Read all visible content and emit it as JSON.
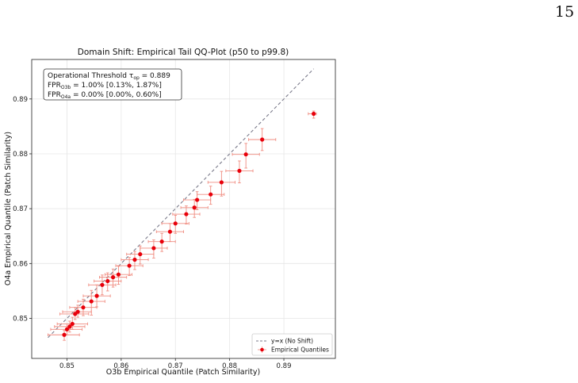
{
  "page": {
    "number": "15"
  },
  "colors": {
    "points": "#e8000b",
    "errorbars": "#f08c80",
    "diagonal": "#7a7a8a",
    "grid": "#e6e6e6"
  },
  "chart_data": {
    "type": "scatter",
    "title": "Domain Shift: Empirical Tail QQ-Plot (p50 to p99.8)",
    "xlabel": "O3b Empirical Quantile (Patch Similarity)",
    "ylabel": "O4a Empirical Quantile (Patch Similarity)",
    "xlim": [
      0.8435,
      0.8995
    ],
    "ylim": [
      0.8427,
      0.8972
    ],
    "xticks": [
      "0.85",
      "0.86",
      "0.87",
      "0.88",
      "0.89"
    ],
    "xtick_values": [
      0.85,
      0.86,
      0.87,
      0.88,
      0.89
    ],
    "yticks": [
      "0.85",
      "0.86",
      "0.87",
      "0.88",
      "0.89"
    ],
    "ytick_values": [
      0.85,
      0.86,
      0.87,
      0.88,
      0.89
    ],
    "grid": true,
    "annotation": {
      "line1_prefix": "Operational Threshold τ",
      "line1_sub": "op",
      "line1_value": " = 0.889",
      "line2_prefix": "FPR",
      "line2_sub": "O3b",
      "line2_value": " = 1.00% [0.13%, 1.87%]",
      "line3_prefix": "FPR",
      "line3_sub": "O4a",
      "line3_value": " = 0.00% [0.00%, 0.60%]",
      "placement": "top-left"
    },
    "legend": {
      "placement": "lower-right",
      "entries": [
        "y=x (No Shift)",
        "Empirical Quantiles"
      ]
    },
    "diagonal": {
      "from": [
        0.8465,
        0.8465
      ],
      "to": [
        0.8955,
        0.8955
      ]
    },
    "series": [
      {
        "name": "Empirical Quantiles",
        "points": [
          {
            "x": 0.8495,
            "y": 0.847,
            "xerr": [
              0.003,
              0.0028
            ],
            "yerr": [
              0.001,
              0.0008
            ]
          },
          {
            "x": 0.85,
            "y": 0.848,
            "xerr": [
              0.003,
              0.0028
            ],
            "yerr": [
              0.001,
              0.001
            ]
          },
          {
            "x": 0.8505,
            "y": 0.8485,
            "xerr": [
              0.0028,
              0.0028
            ],
            "yerr": [
              0.001,
              0.001
            ]
          },
          {
            "x": 0.851,
            "y": 0.849,
            "xerr": [
              0.0028,
              0.0028
            ],
            "yerr": [
              0.001,
              0.0012
            ]
          },
          {
            "x": 0.8515,
            "y": 0.8508,
            "xerr": [
              0.0028,
              0.0025
            ],
            "yerr": [
              0.001,
              0.0012
            ]
          },
          {
            "x": 0.852,
            "y": 0.8512,
            "xerr": [
              0.0028,
              0.0025
            ],
            "yerr": [
              0.001,
              0.0012
            ]
          },
          {
            "x": 0.853,
            "y": 0.852,
            "xerr": [
              0.0025,
              0.0025
            ],
            "yerr": [
              0.0015,
              0.0015
            ]
          },
          {
            "x": 0.8545,
            "y": 0.8531,
            "xerr": [
              0.0025,
              0.0025
            ],
            "yerr": [
              0.0025,
              0.002
            ]
          },
          {
            "x": 0.8555,
            "y": 0.8541,
            "xerr": [
              0.0025,
              0.0025
            ],
            "yerr": [
              0.002,
              0.002
            ]
          },
          {
            "x": 0.8565,
            "y": 0.8561,
            "xerr": [
              0.0025,
              0.0025
            ],
            "yerr": [
              0.0018,
              0.0018
            ]
          },
          {
            "x": 0.8575,
            "y": 0.8568,
            "xerr": [
              0.0025,
              0.0025
            ],
            "yerr": [
              0.0018,
              0.0015
            ]
          },
          {
            "x": 0.8585,
            "y": 0.8575,
            "xerr": [
              0.0025,
              0.0025
            ],
            "yerr": [
              0.0018,
              0.0015
            ]
          },
          {
            "x": 0.8595,
            "y": 0.858,
            "xerr": [
              0.0025,
              0.0025
            ],
            "yerr": [
              0.0018,
              0.0015
            ]
          },
          {
            "x": 0.8615,
            "y": 0.8596,
            "xerr": [
              0.0025,
              0.0025
            ],
            "yerr": [
              0.0018,
              0.0015
            ]
          },
          {
            "x": 0.8625,
            "y": 0.8607,
            "xerr": [
              0.0025,
              0.0025
            ],
            "yerr": [
              0.0018,
              0.0015
            ]
          },
          {
            "x": 0.8635,
            "y": 0.8617,
            "xerr": [
              0.0025,
              0.0025
            ],
            "yerr": [
              0.0018,
              0.0015
            ]
          },
          {
            "x": 0.866,
            "y": 0.8628,
            "xerr": [
              0.0025,
              0.0025
            ],
            "yerr": [
              0.0018,
              0.0015
            ]
          },
          {
            "x": 0.8675,
            "y": 0.864,
            "xerr": [
              0.0025,
              0.0025
            ],
            "yerr": [
              0.0018,
              0.0015
            ]
          },
          {
            "x": 0.869,
            "y": 0.8658,
            "xerr": [
              0.0025,
              0.0025
            ],
            "yerr": [
              0.0018,
              0.0015
            ]
          },
          {
            "x": 0.87,
            "y": 0.8673,
            "xerr": [
              0.0025,
              0.0025
            ],
            "yerr": [
              0.0018,
              0.0015
            ]
          },
          {
            "x": 0.872,
            "y": 0.869,
            "xerr": [
              0.0025,
              0.0025
            ],
            "yerr": [
              0.0018,
              0.0015
            ]
          },
          {
            "x": 0.8735,
            "y": 0.8702,
            "xerr": [
              0.0025,
              0.0025
            ],
            "yerr": [
              0.0018,
              0.0015
            ]
          },
          {
            "x": 0.874,
            "y": 0.8716,
            "xerr": [
              0.0025,
              0.0025
            ],
            "yerr": [
              0.0018,
              0.0015
            ]
          },
          {
            "x": 0.8765,
            "y": 0.8726,
            "xerr": [
              0.0025,
              0.0025
            ],
            "yerr": [
              0.0018,
              0.0015
            ]
          },
          {
            "x": 0.8785,
            "y": 0.8748,
            "xerr": [
              0.0025,
              0.0025
            ],
            "yerr": [
              0.0025,
              0.002
            ]
          },
          {
            "x": 0.8818,
            "y": 0.8769,
            "xerr": [
              0.0025,
              0.0025
            ],
            "yerr": [
              0.0022,
              0.0018
            ]
          },
          {
            "x": 0.883,
            "y": 0.8799,
            "xerr": [
              0.0025,
              0.0025
            ],
            "yerr": [
              0.0025,
              0.002
            ]
          },
          {
            "x": 0.886,
            "y": 0.8826,
            "xerr": [
              0.0025,
              0.0025
            ],
            "yerr": [
              0.002,
              0.002
            ]
          },
          {
            "x": 0.8955,
            "y": 0.8873,
            "xerr": [
              0.001,
              0.0005
            ],
            "yerr": [
              0.0008,
              0.0005
            ]
          }
        ]
      }
    ]
  }
}
